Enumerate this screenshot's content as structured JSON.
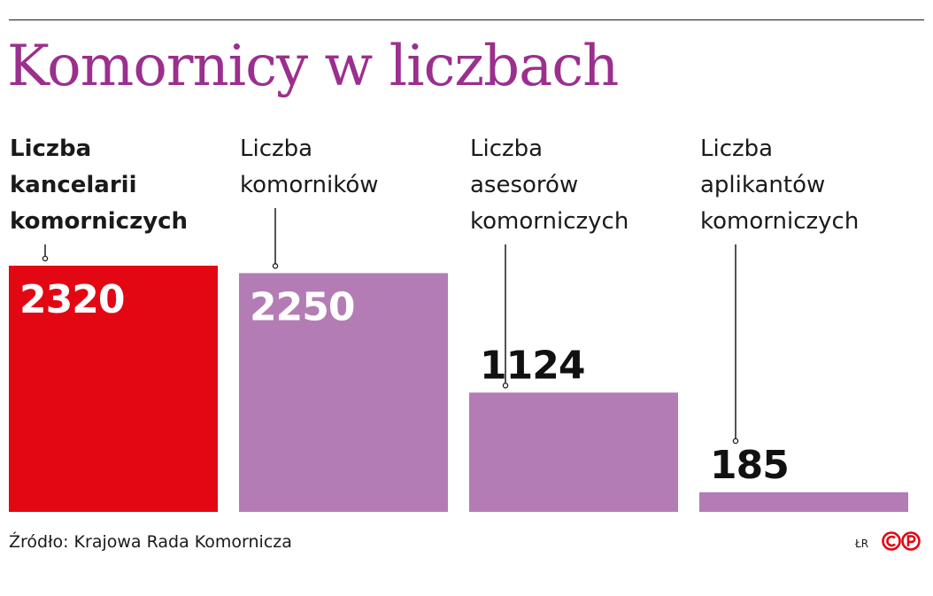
{
  "title": "Komornicy w liczbach",
  "chart_data": {
    "type": "bar",
    "title": "Komornicy w liczbach",
    "categories": [
      [
        "Liczba",
        "kancelarii",
        "komorniczych"
      ],
      [
        "Liczba",
        "komorników"
      ],
      [
        "Liczba",
        "asesorów",
        "komorniczych"
      ],
      [
        "Liczba",
        "aplikantów",
        "komorniczych"
      ]
    ],
    "values": [
      2320,
      2250,
      1124,
      185
    ],
    "highlight_index": 0,
    "ylim": [
      0,
      2320
    ],
    "grid": false,
    "legend": "none",
    "colors": {
      "highlight": "#e30613",
      "bar": "#b47cb4",
      "title": "#9b2f8e",
      "label_on_bar": "#ffffff",
      "label_outside": "#111111"
    }
  },
  "footer": {
    "source": "Źródło: Krajowa Rada Komornicza",
    "credit": "ŁR",
    "logo": "©℗"
  }
}
